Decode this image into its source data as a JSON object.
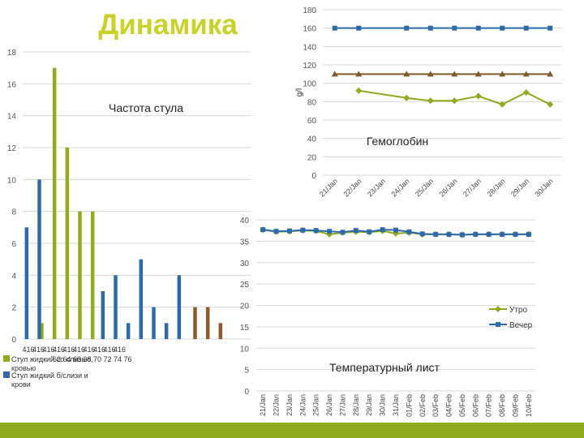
{
  "slide_title": "Динамика",
  "chart_data": [
    {
      "type": "bar",
      "title": "Частота стула",
      "ylim": [
        0,
        18
      ],
      "yticks": [
        0,
        2,
        4,
        6,
        8,
        10,
        12,
        14,
        16,
        18
      ],
      "x_tick_labels": [
        "416",
        "416",
        "416",
        "416",
        "416",
        "416",
        "416",
        "416",
        "416",
        "416"
      ],
      "x_tick_labels_row2": [
        "62",
        "64",
        "66",
        "68",
        "70",
        "72",
        "74",
        "76"
      ],
      "series": [
        {
          "name": "Стул жидкий со слизью, кровью",
          "color": "#8faa1c",
          "values": [
            0,
            1,
            17,
            12,
            8,
            8,
            0,
            0,
            0,
            0,
            0,
            0,
            0,
            0,
            0,
            0,
            0,
            0
          ]
        },
        {
          "name": "Стул жидкий б/слизи и крови",
          "color": "#2e6aa8",
          "values": [
            7,
            10,
            0,
            0,
            0,
            0,
            3,
            4,
            1,
            5,
            2,
            1,
            4,
            0,
            0,
            0,
            0,
            0
          ]
        },
        {
          "name": "",
          "color": "#8b5a2b",
          "values": [
            0,
            0,
            0,
            0,
            0,
            0,
            0,
            0,
            0,
            0,
            0,
            0,
            0,
            2,
            2,
            1,
            0,
            0
          ]
        }
      ],
      "legend": "bottom-left",
      "grid": true
    },
    {
      "type": "line",
      "title": "Гемоглобин",
      "ylabel": "g/l",
      "ylim": [
        0,
        180
      ],
      "yticks": [
        0,
        20,
        40,
        60,
        80,
        100,
        120,
        140,
        160,
        180
      ],
      "categories": [
        "21/Jan",
        "22/Jan",
        "23/Jan",
        "24/Jan",
        "25/Jan",
        "26/Jan",
        "27/Jan",
        "28/Jan",
        "29/Jan",
        "30/Jan"
      ],
      "series": [
        {
          "color": "#2e6aa8",
          "marker": "square",
          "values": [
            160,
            160,
            null,
            160,
            160,
            160,
            160,
            160,
            160,
            160
          ]
        },
        {
          "color": "#7b5b2a",
          "marker": "triangle",
          "values": [
            110,
            110,
            null,
            110,
            110,
            110,
            110,
            110,
            110,
            110
          ]
        },
        {
          "color": "#8faa1c",
          "marker": "diamond",
          "values": [
            null,
            92,
            null,
            84,
            81,
            81,
            86,
            77,
            90,
            77
          ]
        }
      ],
      "grid": true
    },
    {
      "type": "line",
      "title": "Температурный лист",
      "ylim": [
        0,
        40
      ],
      "yticks": [
        0,
        5,
        10,
        15,
        20,
        25,
        30,
        35,
        40
      ],
      "categories": [
        "21/Jan",
        "22/Jan",
        "23/Jan",
        "24/Jan",
        "25/Jan",
        "26/Jan",
        "27/Jan",
        "28/Jan",
        "29/Jan",
        "30/Jan",
        "31/Jan",
        "01/Feb",
        "02/Feb",
        "03/Feb",
        "04/Feb",
        "05/Feb",
        "06/Feb",
        "07/Feb",
        "08/Feb",
        "09/Feb",
        "10/Feb"
      ],
      "series": [
        {
          "name": "Утро",
          "color": "#8faa1c",
          "marker": "diamond",
          "values": [
            37.7,
            37.2,
            37.3,
            37.5,
            37.4,
            36.6,
            37.0,
            37.2,
            37.1,
            37.4,
            36.8,
            37.0,
            36.6,
            36.6,
            36.6,
            36.5,
            36.6,
            36.6,
            36.6,
            36.6,
            36.6
          ]
        },
        {
          "name": "Вечер",
          "color": "#2e6aa8",
          "marker": "square",
          "values": [
            37.7,
            37.3,
            37.4,
            37.6,
            37.5,
            37.3,
            37.1,
            37.5,
            37.2,
            37.7,
            37.6,
            37.2,
            36.7,
            36.6,
            36.6,
            36.5,
            36.6,
            36.6,
            36.6,
            36.6,
            36.6
          ]
        }
      ],
      "legend": "right",
      "grid": true
    }
  ]
}
